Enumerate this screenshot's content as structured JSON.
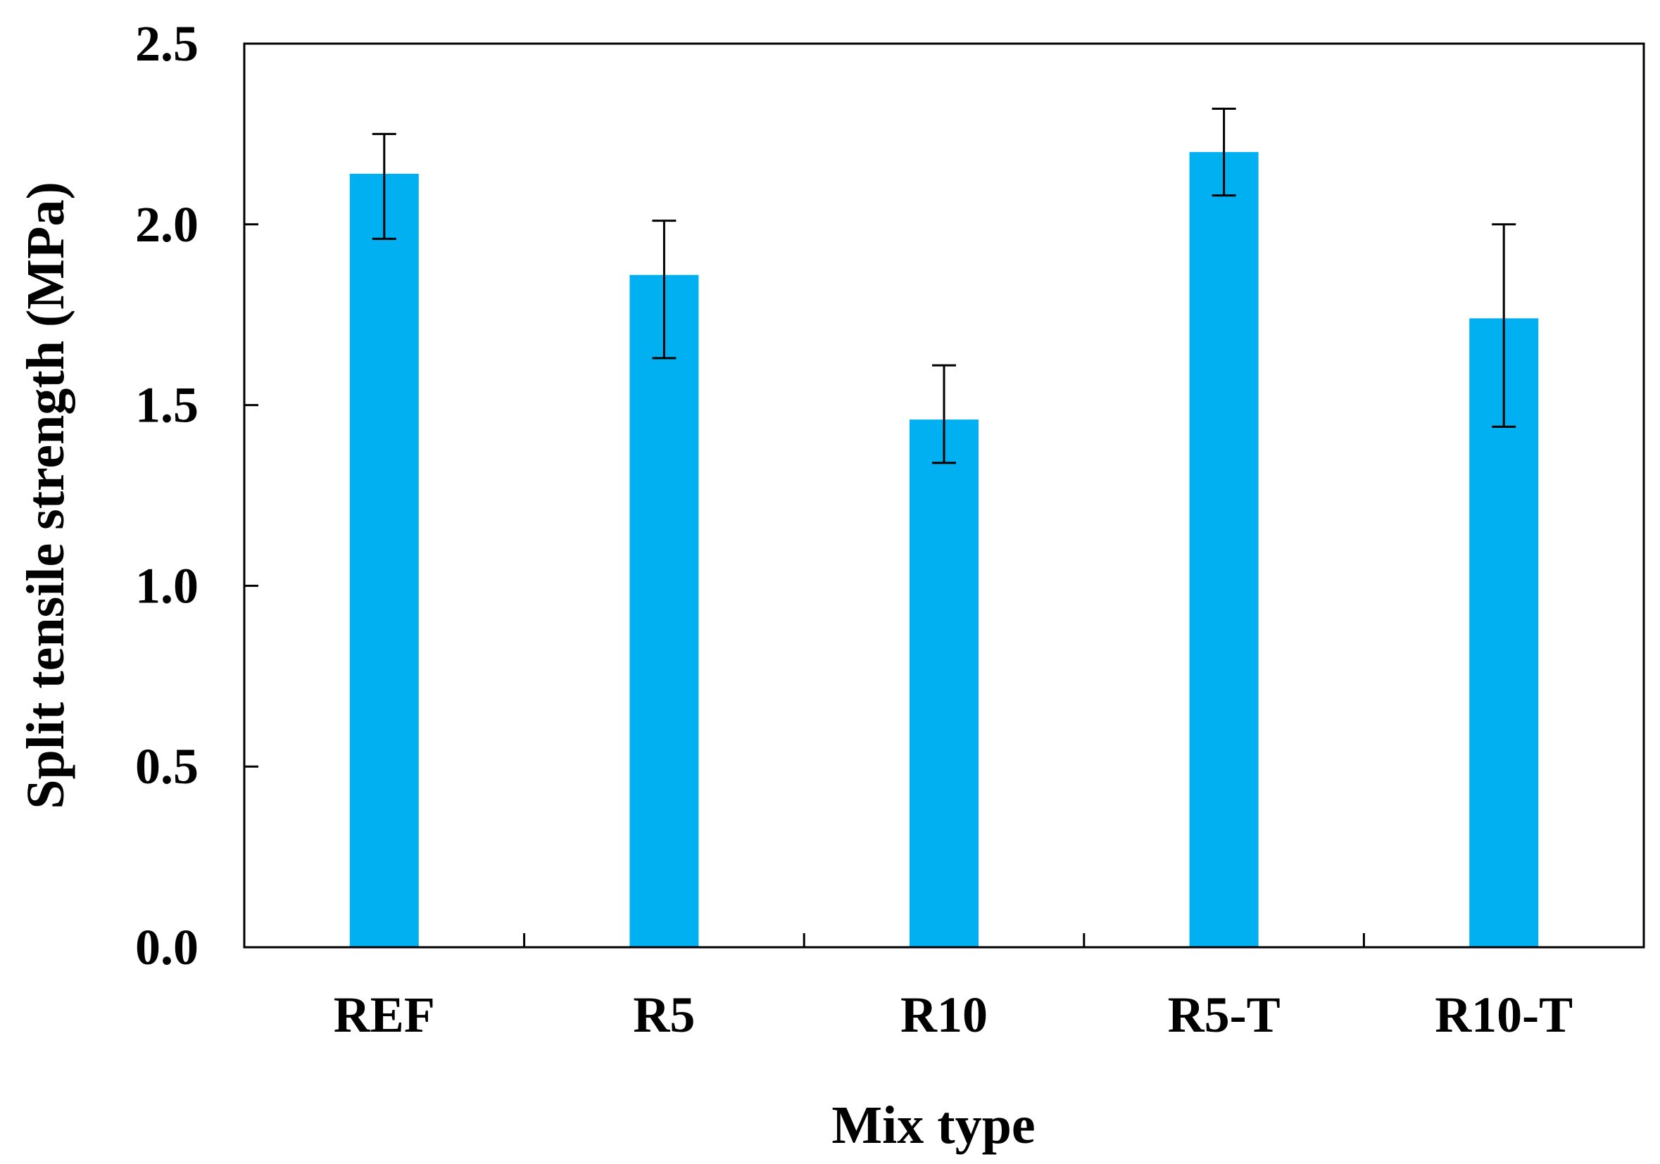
{
  "chart_data": {
    "type": "bar",
    "title": "",
    "xlabel": "Mix type",
    "ylabel": "Split tensile strength (MPa)",
    "categories": [
      "REF",
      "R5",
      "R10",
      "R5-T",
      "R10-T"
    ],
    "values": [
      2.14,
      1.86,
      1.46,
      2.2,
      1.74
    ],
    "error_low": [
      1.96,
      1.63,
      1.34,
      2.08,
      1.44
    ],
    "error_high": [
      2.25,
      2.01,
      1.61,
      2.32,
      2.0
    ],
    "ylim": [
      0,
      2.5
    ],
    "yticks": [
      "0.0",
      "0.5",
      "1.0",
      "1.5",
      "2.0",
      "2.5"
    ],
    "grid": false,
    "legend": "none",
    "colors": {
      "bar": "#00b0f0",
      "axis": "#000000",
      "error_bar": "#000000"
    }
  }
}
